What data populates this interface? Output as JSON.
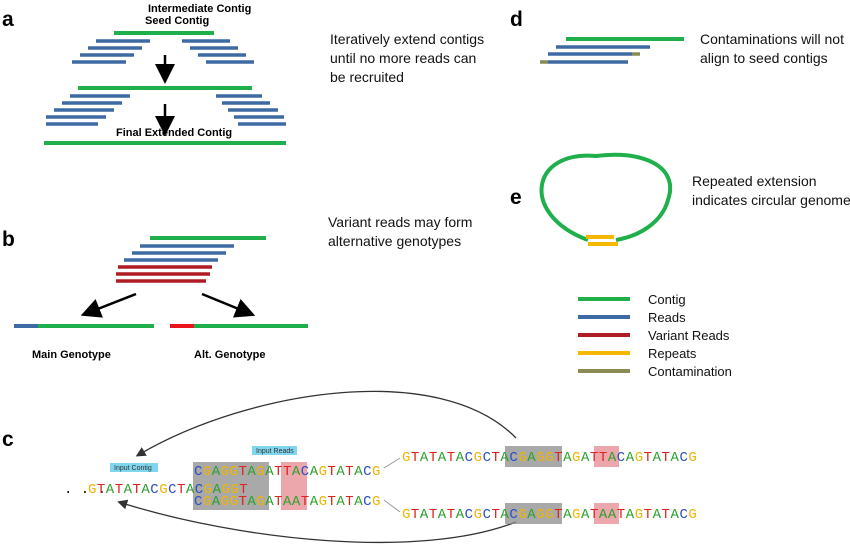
{
  "colors": {
    "contig": "#1fb04b",
    "reads": "#3d6aa3",
    "variant_reads": "#b01c24",
    "repeats": "#f5b800",
    "contamination": "#8a8a55",
    "variant_red": "#e8141a",
    "tag_bg": "#7fd6ef",
    "box_gray": "#8c8c8c",
    "box_pink": "#e58a92",
    "base_A": "#2ca02c",
    "base_C": "#2b4fbf",
    "base_G": "#f0b400",
    "base_T": "#e0231c"
  },
  "panel_a": {
    "label": "a",
    "intermediate_label": "Intermediate Contig",
    "seed_label": "Seed Contig",
    "final_label": "Final Extended Contig",
    "caption": [
      "Iteratively extend contigs",
      "until no more reads can",
      "be recruited"
    ]
  },
  "panel_b": {
    "label": "b",
    "caption": [
      "Variant reads  may form",
      "alternative  genotypes"
    ],
    "main_label": "Main Genotype",
    "alt_label": "Alt. Genotype"
  },
  "panel_c": {
    "label": "c",
    "input_contig_tag": "Input Contig",
    "input_reads_tag": "Input Reads",
    "contig_prefix": ". . .",
    "contig_seq": "GTATATACGCTACGAGGT",
    "read1_seq": "CGAGGTAGATTACAGTATACG",
    "read2_seq": "CGAGGTAGATAATAGTATACG",
    "ext1_seq": "GTATATACGCTACGAGGTAGATTACAGTATACG",
    "ext2_seq": "GTATATACGCTACGAGGTAGATAATAGTATACG"
  },
  "panel_d": {
    "label": "d",
    "caption": [
      "Contaminations will not",
      "align to seed contigs"
    ]
  },
  "panel_e": {
    "label": "e",
    "caption": [
      "Repeated extension",
      "indicates circular genome"
    ]
  },
  "legend": [
    {
      "label": "Contig",
      "color_key": "contig"
    },
    {
      "label": "Reads",
      "color_key": "reads"
    },
    {
      "label": "Variant Reads",
      "color_key": "variant_reads"
    },
    {
      "label": "Repeats",
      "color_key": "repeats"
    },
    {
      "label": "Contamination",
      "color_key": "contamination"
    }
  ]
}
